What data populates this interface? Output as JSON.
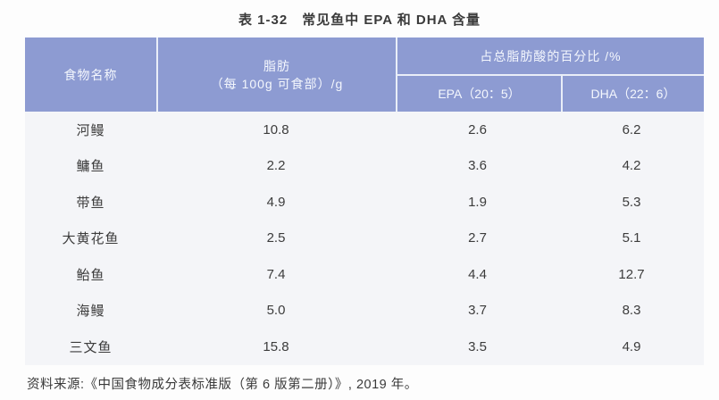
{
  "page": {
    "title": "表 1-32　常见鱼中 EPA 和 DHA 含量",
    "source_note": "资料来源:《中国食物成分表标准版（第 6 版第二册）》, 2019 年。"
  },
  "table": {
    "header": {
      "food": "食物名称",
      "fat_line1": "脂肪",
      "fat_line2": "（每 100g 可食部）/g",
      "pct_group": "占总脂肪酸的百分比 /%",
      "epa": "EPA（20：5）",
      "dha": "DHA（22：6）"
    },
    "rows": [
      {
        "food": "河鳗",
        "fat": "10.8",
        "epa": "2.6",
        "dha": "6.2"
      },
      {
        "food": "鳙鱼",
        "fat": "2.2",
        "epa": "3.6",
        "dha": "4.2"
      },
      {
        "food": "带鱼",
        "fat": "4.9",
        "epa": "1.9",
        "dha": "5.3"
      },
      {
        "food": "大黄花鱼",
        "fat": "2.5",
        "epa": "2.7",
        "dha": "5.1"
      },
      {
        "food": "鲐鱼",
        "fat": "7.4",
        "epa": "4.4",
        "dha": "12.7"
      },
      {
        "food": "海鳗",
        "fat": "5.0",
        "epa": "3.7",
        "dha": "8.3"
      },
      {
        "food": "三文鱼",
        "fat": "15.8",
        "epa": "3.5",
        "dha": "4.9"
      }
    ]
  },
  "colors": {
    "header_bg": "#8d9bd2",
    "header_text": "#f4f7fd",
    "divider": "#e9eef8",
    "body_bg": "#f4f5f8",
    "text_dark": "#3a3a3a",
    "text_body": "#3c3c3c",
    "page_bg": "#fdfdfd"
  }
}
